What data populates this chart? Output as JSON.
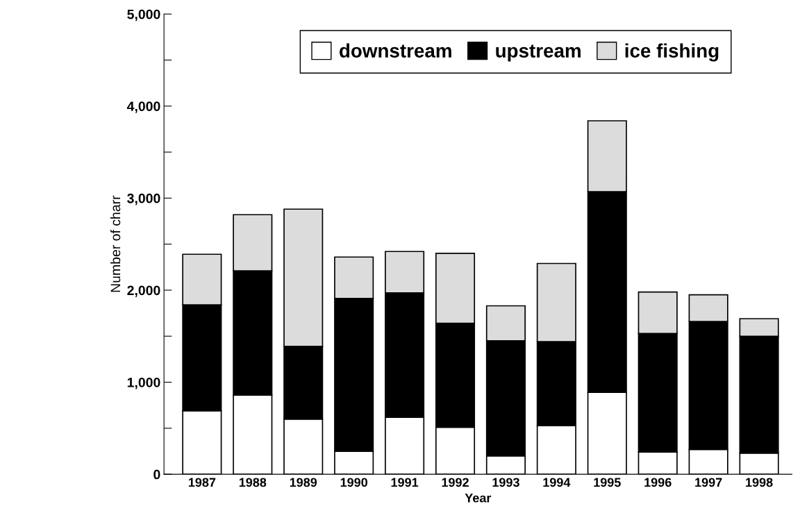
{
  "chart_data": {
    "type": "bar",
    "stacked": true,
    "xlabel": "Year",
    "ylabel": "Number of charr",
    "categories": [
      "1987",
      "1988",
      "1989",
      "1990",
      "1991",
      "1992",
      "1993",
      "1994",
      "1995",
      "1996",
      "1997",
      "1998"
    ],
    "series": [
      {
        "name": "downstream",
        "color": "#ffffff",
        "values": [
          690,
          860,
          600,
          250,
          620,
          510,
          200,
          530,
          890,
          240,
          270,
          230
        ]
      },
      {
        "name": "upstream",
        "color": "#000000",
        "values": [
          1150,
          1350,
          790,
          1660,
          1350,
          1130,
          1250,
          910,
          2180,
          1290,
          1390,
          1270
        ]
      },
      {
        "name": "ice fishing",
        "color": "#dcdcdc",
        "values": [
          550,
          610,
          1490,
          450,
          450,
          760,
          380,
          850,
          770,
          450,
          290,
          190
        ]
      }
    ],
    "ylim": [
      0,
      5000
    ],
    "yticks": [
      {
        "value": 0,
        "label": "0"
      },
      {
        "value": 500,
        "label": null
      },
      {
        "value": 1000,
        "label": "1,000"
      },
      {
        "value": 1500,
        "label": null
      },
      {
        "value": 2000,
        "label": "2,000"
      },
      {
        "value": 2500,
        "label": null
      },
      {
        "value": 3000,
        "label": "3,000"
      },
      {
        "value": 3500,
        "label": null
      },
      {
        "value": 4000,
        "label": "4,000"
      },
      {
        "value": 4500,
        "label": null
      },
      {
        "value": 5000,
        "label": "5,000"
      }
    ],
    "grid": false,
    "legend": "top"
  }
}
